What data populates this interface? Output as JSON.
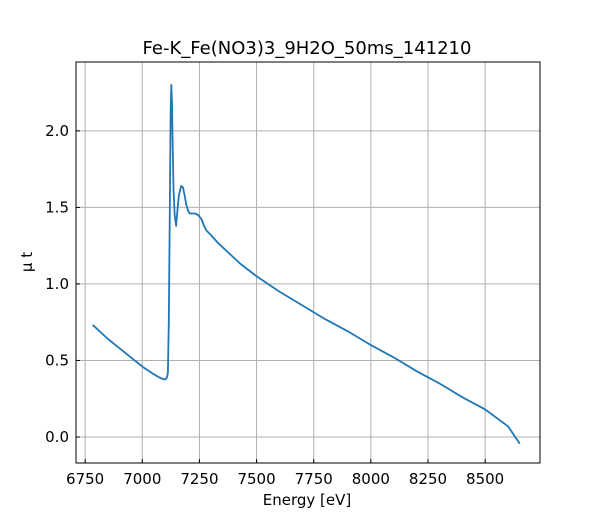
{
  "chart_data": {
    "type": "line",
    "title": "Fe-K_Fe(NO3)3_9H2O_50ms_141210",
    "xlabel": "Energy [eV]",
    "ylabel": "μ t",
    "xlim": [
      6710,
      8740
    ],
    "ylim": [
      -0.17,
      2.45
    ],
    "xticks": [
      6750,
      7000,
      7250,
      7500,
      7750,
      8000,
      8250,
      8500
    ],
    "yticks": [
      0.0,
      0.5,
      1.0,
      1.5,
      2.0
    ],
    "xtick_labels": [
      "6750",
      "7000",
      "7250",
      "7500",
      "7750",
      "8000",
      "8250",
      "8500"
    ],
    "ytick_labels": [
      "0.0",
      "0.5",
      "1.0",
      "1.5",
      "2.0"
    ],
    "grid": true,
    "series": [
      {
        "color": "#1f77b4",
        "x": [
          6785,
          6850,
          6900,
          6950,
          7000,
          7050,
          7080,
          7100,
          7108,
          7112,
          7116,
          7120,
          7124,
          7127,
          7130,
          7133,
          7137,
          7142,
          7148,
          7155,
          7160,
          7170,
          7178,
          7185,
          7192,
          7200,
          7208,
          7218,
          7230,
          7245,
          7260,
          7270,
          7280,
          7300,
          7330,
          7380,
          7430,
          7500,
          7600,
          7700,
          7800,
          7900,
          8000,
          8100,
          8200,
          8300,
          8400,
          8500,
          8600,
          8650
        ],
        "y": [
          0.73,
          0.64,
          0.58,
          0.52,
          0.46,
          0.41,
          0.385,
          0.375,
          0.39,
          0.42,
          0.75,
          1.4,
          2.1,
          2.3,
          2.18,
          1.9,
          1.6,
          1.45,
          1.38,
          1.5,
          1.58,
          1.64,
          1.63,
          1.58,
          1.52,
          1.48,
          1.46,
          1.46,
          1.46,
          1.45,
          1.42,
          1.38,
          1.35,
          1.32,
          1.27,
          1.2,
          1.13,
          1.05,
          0.95,
          0.86,
          0.77,
          0.69,
          0.6,
          0.52,
          0.43,
          0.35,
          0.26,
          0.18,
          0.07,
          -0.04
        ]
      }
    ]
  }
}
